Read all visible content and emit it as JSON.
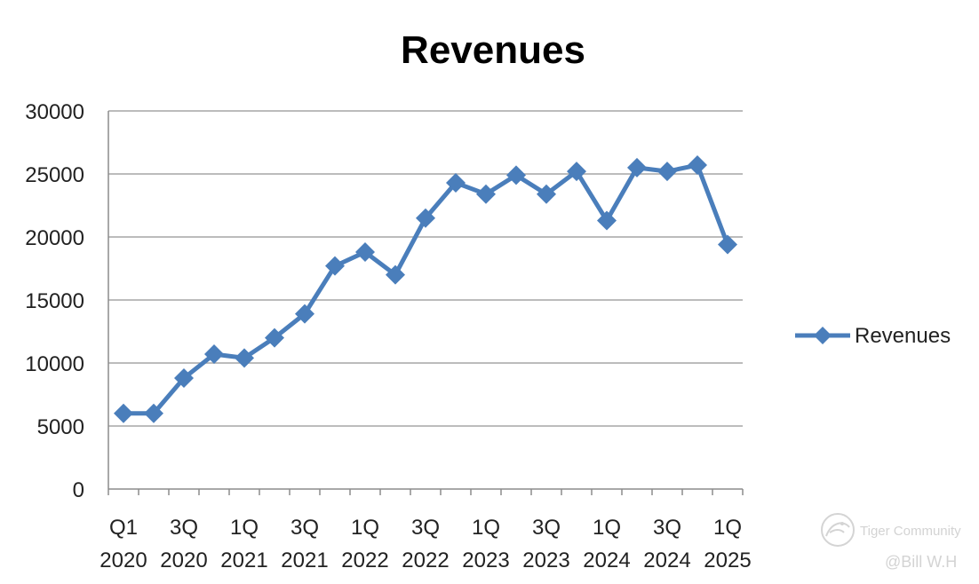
{
  "chart_data": {
    "type": "line",
    "title": "Revenues",
    "xlabel": "",
    "ylabel": "",
    "ylim": [
      0,
      30000
    ],
    "yticks": [
      "0",
      "5000",
      "10000",
      "15000",
      "20000",
      "25000",
      "30000"
    ],
    "grid": true,
    "legend_position": "right",
    "categories": [
      "Q1 2020",
      "2Q 2020",
      "3Q 2020",
      "4Q 2020",
      "1Q 2021",
      "2Q 2021",
      "3Q 2021",
      "4Q 2021",
      "1Q 2022",
      "2Q 2022",
      "3Q 2022",
      "4Q 2022",
      "1Q 2023",
      "2Q 2023",
      "3Q 2023",
      "4Q 2023",
      "1Q 2024",
      "2Q 2024",
      "3Q 2024",
      "4Q 2024",
      "1Q 2025"
    ],
    "tick_labels": [
      {
        "index": 0,
        "line1": "Q1",
        "line2": "2020"
      },
      {
        "index": 2,
        "line1": "3Q",
        "line2": "2020"
      },
      {
        "index": 4,
        "line1": "1Q",
        "line2": "2021"
      },
      {
        "index": 6,
        "line1": "3Q",
        "line2": "2021"
      },
      {
        "index": 8,
        "line1": "1Q",
        "line2": "2022"
      },
      {
        "index": 10,
        "line1": "3Q",
        "line2": "2022"
      },
      {
        "index": 12,
        "line1": "1Q",
        "line2": "2023"
      },
      {
        "index": 14,
        "line1": "3Q",
        "line2": "2023"
      },
      {
        "index": 16,
        "line1": "1Q",
        "line2": "2024"
      },
      {
        "index": 18,
        "line1": "3Q",
        "line2": "2024"
      },
      {
        "index": 20,
        "line1": "1Q",
        "line2": "2025"
      }
    ],
    "series": [
      {
        "name": "Revenues",
        "color": "#4A7EBB",
        "marker": "diamond",
        "values": [
          6000,
          6000,
          8800,
          10700,
          10400,
          12000,
          13900,
          17700,
          18800,
          17000,
          21500,
          24300,
          23400,
          24900,
          23400,
          25200,
          21300,
          25500,
          25200,
          25700,
          19400
        ]
      }
    ]
  },
  "watermark": {
    "brand": "Tiger Community",
    "handle": "@Bill W.H",
    "icon": "tiger-logo-icon"
  }
}
